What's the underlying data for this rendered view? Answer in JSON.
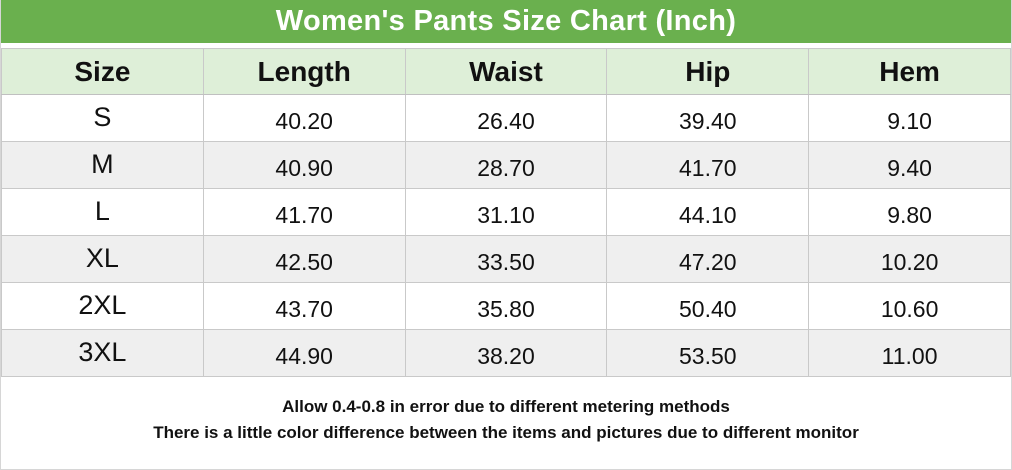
{
  "title": "Women's Pants Size Chart (Inch)",
  "table": {
    "headers": [
      "Size",
      "Length",
      "Waist",
      "Hip",
      "Hem"
    ],
    "rows": [
      [
        "S",
        "40.20",
        "26.40",
        "39.40",
        "9.10"
      ],
      [
        "M",
        "40.90",
        "28.70",
        "41.70",
        "9.40"
      ],
      [
        "L",
        "41.70",
        "31.10",
        "44.10",
        "9.80"
      ],
      [
        "XL",
        "42.50",
        "33.50",
        "47.20",
        "10.20"
      ],
      [
        "2XL",
        "43.70",
        "35.80",
        "50.40",
        "10.60"
      ],
      [
        "3XL",
        "44.90",
        "38.20",
        "53.50",
        "11.00"
      ]
    ]
  },
  "footer": {
    "line1": "Allow 0.4-0.8 in error due to different metering methods",
    "line2": "There is a little color difference between the items and pictures due to different monitor"
  },
  "colors": {
    "title_bar_green": "#6ab04e",
    "header_row_green": "#deefd8",
    "alt_row_gray": "#efefef",
    "border_gray": "#c9c9c9",
    "title_text": "#ffffff",
    "body_text": "#111111"
  },
  "chart_data": {
    "type": "table",
    "title": "Women's Pants Size Chart (Inch)",
    "columns": [
      "Size",
      "Length",
      "Waist",
      "Hip",
      "Hem"
    ],
    "rows": [
      [
        "S",
        40.2,
        26.4,
        39.4,
        9.1
      ],
      [
        "M",
        40.9,
        28.7,
        41.7,
        9.4
      ],
      [
        "L",
        41.7,
        31.1,
        44.1,
        9.8
      ],
      [
        "XL",
        42.5,
        33.5,
        47.2,
        10.2
      ],
      [
        "2XL",
        43.7,
        35.8,
        50.4,
        10.6
      ],
      [
        "3XL",
        44.9,
        38.2,
        53.5,
        11.0
      ]
    ],
    "notes": [
      "Allow 0.4-0.8 in error due to different metering methods",
      "There is a little color difference between the items and pictures due to different monitor"
    ]
  }
}
